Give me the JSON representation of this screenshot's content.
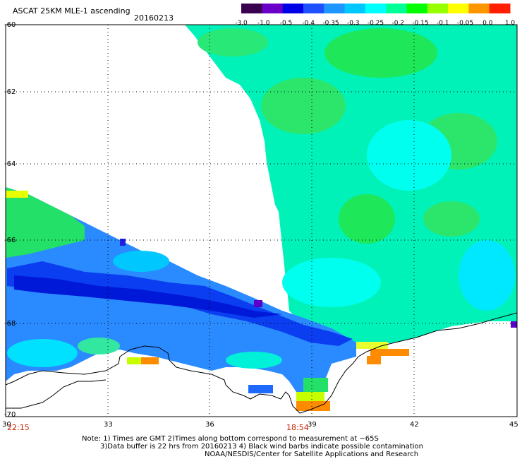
{
  "header": {
    "title": "ASCAT 25KM MLE-1 ascending",
    "date": "20160213"
  },
  "colorbar": {
    "ticks": [
      "-3.0",
      "-1.0",
      "-0.5",
      "-0.4",
      "-0.35",
      "-0.3",
      "-0.25",
      "-0.2",
      "-0.15",
      "-0.1",
      "-0.05",
      "0.0",
      "1.0"
    ],
    "colors": [
      "#3a0050",
      "#6a00c8",
      "#0000e6",
      "#1e50ff",
      "#1e96ff",
      "#00c8ff",
      "#00ffff",
      "#00ff96",
      "#00ff00",
      "#96ff00",
      "#ffff00",
      "#ff9600",
      "#ff1e00"
    ]
  },
  "axes": {
    "lat_labels": [
      "-60",
      "-62",
      "-64",
      "-66",
      "-68",
      "-70"
    ],
    "lon_labels": [
      "30",
      "33",
      "36",
      "39",
      "42",
      "45"
    ]
  },
  "times": {
    "left": "22:15",
    "center": "18:54"
  },
  "notes": {
    "line1": "Note: 1) Times are GMT 2)Times along bottom correspond to measurement at ~65S",
    "line2": "3)Data buffer is 22 hrs from 20160213 4) Black wind barbs indicate possible contamination",
    "line3": "NOAA/NESDIS/Center for Satellite Applications and Research"
  }
}
